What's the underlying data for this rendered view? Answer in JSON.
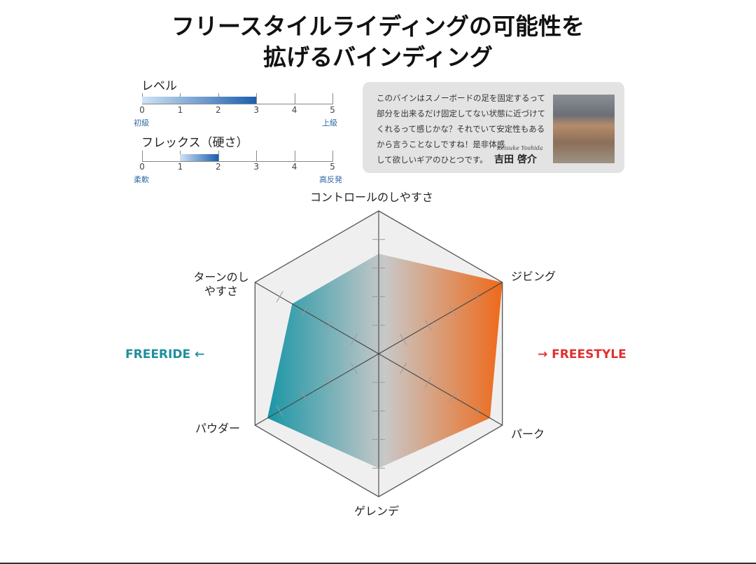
{
  "title": {
    "line1": "フリースタイルライディングの可能性を",
    "line2": "拡げるバインディング"
  },
  "level": {
    "label": "レベル",
    "value": 3,
    "ticks": [
      "0",
      "1",
      "2",
      "3",
      "4",
      "5"
    ],
    "min_label": "初級",
    "max_label": "上級"
  },
  "flex": {
    "label": "フレックス（硬さ）",
    "range": [
      1,
      2
    ],
    "ticks": [
      "0",
      "1",
      "2",
      "3",
      "4",
      "5"
    ],
    "min_label": "柔軟",
    "max_label": "高反発"
  },
  "quote": {
    "lines": [
      "このバインはスノーボードの足を固定するって",
      "部分を出来るだけ固定してない状態に近づけて",
      "くれるって感じかな？それでいて安定性もある",
      "から言うことなしですね！是非体感",
      "して欲しいギアのひとつです。"
    ],
    "name_en": "Keisuke Yoshida",
    "name_jp": "吉田 啓介"
  },
  "sides": {
    "left": "FREERIDE",
    "right": "FREESTYLE",
    "left_color": "#1f8f9c",
    "right_color": "#e03030"
  },
  "chart_data": {
    "type": "radar",
    "max": 5,
    "levels": 5,
    "categories": [
      "コントロールのしやすさ",
      "ジビング",
      "パーク",
      "ゲレンデ",
      "パウダー",
      "ターンのしやすさ"
    ],
    "values": [
      3.5,
      5,
      4.5,
      4,
      4.5,
      3.5
    ],
    "colors": {
      "left": "#1a96a6",
      "center": "#c8c8c8",
      "right": "#ee6a1a"
    }
  }
}
